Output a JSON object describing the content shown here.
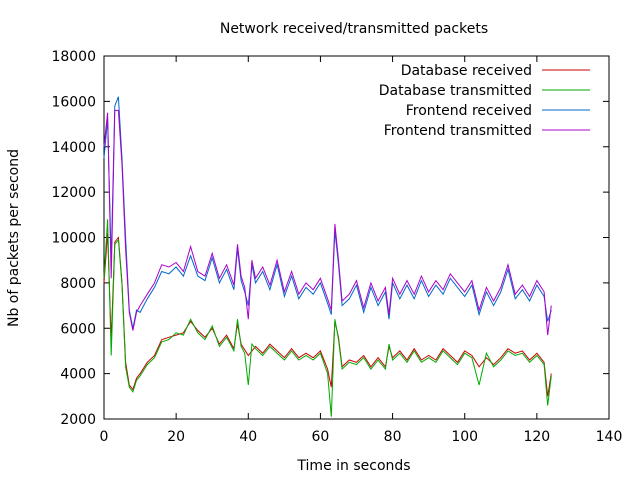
{
  "chart_data": {
    "type": "line",
    "title": "Network received/transmitted packets",
    "xlabel": "Time in seconds",
    "ylabel": "Nb of packets per second",
    "xlim": [
      0,
      140
    ],
    "ylim": [
      2000,
      18000
    ],
    "xticks": [
      0,
      20,
      40,
      60,
      80,
      100,
      120,
      140
    ],
    "yticks": [
      2000,
      4000,
      6000,
      8000,
      10000,
      12000,
      14000,
      16000,
      18000
    ],
    "grid": false,
    "legend_position": "top-right",
    "series": [
      {
        "name": "Database received",
        "color": "#cc0000",
        "points": [
          [
            0,
            8000
          ],
          [
            1,
            10200
          ],
          [
            2,
            5500
          ],
          [
            3,
            9800
          ],
          [
            4,
            10000
          ],
          [
            5,
            8000
          ],
          [
            6,
            4500
          ],
          [
            7,
            3500
          ],
          [
            8,
            3300
          ],
          [
            9,
            3800
          ],
          [
            10,
            4000
          ],
          [
            12,
            4500
          ],
          [
            14,
            4800
          ],
          [
            16,
            5500
          ],
          [
            18,
            5600
          ],
          [
            20,
            5700
          ],
          [
            22,
            5800
          ],
          [
            24,
            6300
          ],
          [
            26,
            5900
          ],
          [
            28,
            5600
          ],
          [
            30,
            6000
          ],
          [
            32,
            5300
          ],
          [
            34,
            5700
          ],
          [
            36,
            5100
          ],
          [
            37,
            6200
          ],
          [
            38,
            5300
          ],
          [
            40,
            4800
          ],
          [
            42,
            5200
          ],
          [
            44,
            4900
          ],
          [
            46,
            5300
          ],
          [
            48,
            5000
          ],
          [
            50,
            4700
          ],
          [
            52,
            5100
          ],
          [
            54,
            4700
          ],
          [
            56,
            4900
          ],
          [
            58,
            4700
          ],
          [
            60,
            5000
          ],
          [
            62,
            4200
          ],
          [
            63,
            3400
          ],
          [
            64,
            6300
          ],
          [
            65,
            5600
          ],
          [
            66,
            4300
          ],
          [
            68,
            4600
          ],
          [
            70,
            4500
          ],
          [
            72,
            4800
          ],
          [
            74,
            4300
          ],
          [
            76,
            4700
          ],
          [
            78,
            4300
          ],
          [
            79,
            5200
          ],
          [
            80,
            4700
          ],
          [
            82,
            5000
          ],
          [
            84,
            4600
          ],
          [
            86,
            5100
          ],
          [
            88,
            4600
          ],
          [
            90,
            4800
          ],
          [
            92,
            4600
          ],
          [
            94,
            5100
          ],
          [
            96,
            4800
          ],
          [
            98,
            4500
          ],
          [
            100,
            5000
          ],
          [
            102,
            4800
          ],
          [
            104,
            4300
          ],
          [
            106,
            4700
          ],
          [
            108,
            4400
          ],
          [
            110,
            4700
          ],
          [
            112,
            5100
          ],
          [
            114,
            4900
          ],
          [
            116,
            5000
          ],
          [
            118,
            4600
          ],
          [
            120,
            4900
          ],
          [
            122,
            4500
          ],
          [
            123,
            3000
          ],
          [
            124,
            4000
          ]
        ]
      },
      {
        "name": "Database transmitted",
        "color": "#00aa00",
        "points": [
          [
            0,
            8200
          ],
          [
            1,
            10800
          ],
          [
            2,
            4800
          ],
          [
            3,
            9700
          ],
          [
            4,
            9900
          ],
          [
            5,
            7900
          ],
          [
            6,
            4300
          ],
          [
            7,
            3400
          ],
          [
            8,
            3200
          ],
          [
            9,
            3700
          ],
          [
            10,
            3900
          ],
          [
            12,
            4400
          ],
          [
            14,
            4700
          ],
          [
            16,
            5400
          ],
          [
            18,
            5500
          ],
          [
            20,
            5800
          ],
          [
            22,
            5700
          ],
          [
            24,
            6400
          ],
          [
            26,
            5800
          ],
          [
            28,
            5500
          ],
          [
            30,
            6100
          ],
          [
            32,
            5200
          ],
          [
            34,
            5600
          ],
          [
            36,
            5000
          ],
          [
            37,
            6400
          ],
          [
            38,
            5200
          ],
          [
            39,
            4900
          ],
          [
            40,
            3500
          ],
          [
            41,
            5300
          ],
          [
            42,
            5100
          ],
          [
            44,
            4800
          ],
          [
            46,
            5200
          ],
          [
            48,
            4900
          ],
          [
            50,
            4600
          ],
          [
            52,
            5000
          ],
          [
            54,
            4600
          ],
          [
            56,
            4800
          ],
          [
            58,
            4600
          ],
          [
            60,
            4900
          ],
          [
            62,
            4000
          ],
          [
            63,
            2100
          ],
          [
            64,
            6400
          ],
          [
            65,
            5500
          ],
          [
            66,
            4200
          ],
          [
            68,
            4500
          ],
          [
            70,
            4400
          ],
          [
            72,
            4700
          ],
          [
            74,
            4200
          ],
          [
            76,
            4600
          ],
          [
            78,
            4200
          ],
          [
            79,
            5300
          ],
          [
            80,
            4600
          ],
          [
            82,
            4900
          ],
          [
            84,
            4500
          ],
          [
            86,
            5000
          ],
          [
            88,
            4500
          ],
          [
            90,
            4700
          ],
          [
            92,
            4500
          ],
          [
            94,
            5000
          ],
          [
            96,
            4700
          ],
          [
            98,
            4400
          ],
          [
            100,
            4900
          ],
          [
            102,
            4700
          ],
          [
            104,
            3500
          ],
          [
            106,
            4900
          ],
          [
            108,
            4300
          ],
          [
            110,
            4600
          ],
          [
            112,
            5000
          ],
          [
            114,
            4800
          ],
          [
            116,
            4900
          ],
          [
            118,
            4500
          ],
          [
            120,
            4800
          ],
          [
            122,
            4400
          ],
          [
            123,
            2600
          ],
          [
            124,
            3900
          ]
        ]
      },
      {
        "name": "Frontend received",
        "color": "#0066cc",
        "points": [
          [
            0,
            13500
          ],
          [
            1,
            15200
          ],
          [
            2,
            9000
          ],
          [
            3,
            15800
          ],
          [
            4,
            16200
          ],
          [
            5,
            13500
          ],
          [
            6,
            10000
          ],
          [
            7,
            6800
          ],
          [
            8,
            6000
          ],
          [
            9,
            6800
          ],
          [
            10,
            6700
          ],
          [
            12,
            7300
          ],
          [
            14,
            7800
          ],
          [
            16,
            8500
          ],
          [
            18,
            8400
          ],
          [
            20,
            8700
          ],
          [
            22,
            8300
          ],
          [
            24,
            9200
          ],
          [
            26,
            8300
          ],
          [
            28,
            8100
          ],
          [
            30,
            9100
          ],
          [
            32,
            8000
          ],
          [
            34,
            8600
          ],
          [
            36,
            7700
          ],
          [
            37,
            9500
          ],
          [
            38,
            8100
          ],
          [
            39,
            7600
          ],
          [
            40,
            7000
          ],
          [
            41,
            8800
          ],
          [
            42,
            8000
          ],
          [
            44,
            8500
          ],
          [
            46,
            7700
          ],
          [
            48,
            8800
          ],
          [
            50,
            7400
          ],
          [
            52,
            8300
          ],
          [
            54,
            7300
          ],
          [
            56,
            7800
          ],
          [
            58,
            7500
          ],
          [
            60,
            8000
          ],
          [
            62,
            7100
          ],
          [
            63,
            6600
          ],
          [
            64,
            10300
          ],
          [
            65,
            8800
          ],
          [
            66,
            7000
          ],
          [
            68,
            7300
          ],
          [
            70,
            7900
          ],
          [
            72,
            6700
          ],
          [
            74,
            7800
          ],
          [
            76,
            7000
          ],
          [
            78,
            7600
          ],
          [
            79,
            6400
          ],
          [
            80,
            8000
          ],
          [
            82,
            7300
          ],
          [
            84,
            7900
          ],
          [
            86,
            7300
          ],
          [
            88,
            8100
          ],
          [
            90,
            7400
          ],
          [
            92,
            7900
          ],
          [
            94,
            7500
          ],
          [
            96,
            8200
          ],
          [
            98,
            7800
          ],
          [
            100,
            7400
          ],
          [
            102,
            7900
          ],
          [
            104,
            6600
          ],
          [
            106,
            7600
          ],
          [
            108,
            7000
          ],
          [
            110,
            7600
          ],
          [
            112,
            8600
          ],
          [
            114,
            7300
          ],
          [
            116,
            7700
          ],
          [
            118,
            7200
          ],
          [
            120,
            7900
          ],
          [
            122,
            7400
          ],
          [
            123,
            6300
          ],
          [
            124,
            6800
          ]
        ]
      },
      {
        "name": "Frontend transmitted",
        "color": "#aa00cc",
        "points": [
          [
            0,
            14000
          ],
          [
            1,
            15500
          ],
          [
            2,
            8200
          ],
          [
            3,
            15600
          ],
          [
            4,
            15600
          ],
          [
            5,
            13200
          ],
          [
            6,
            9500
          ],
          [
            7,
            6700
          ],
          [
            8,
            5900
          ],
          [
            9,
            6700
          ],
          [
            10,
            7000
          ],
          [
            12,
            7500
          ],
          [
            14,
            8000
          ],
          [
            16,
            8800
          ],
          [
            18,
            8700
          ],
          [
            20,
            8900
          ],
          [
            22,
            8500
          ],
          [
            24,
            9600
          ],
          [
            26,
            8500
          ],
          [
            28,
            8300
          ],
          [
            30,
            9300
          ],
          [
            32,
            8200
          ],
          [
            34,
            8800
          ],
          [
            36,
            7900
          ],
          [
            37,
            9700
          ],
          [
            38,
            8300
          ],
          [
            39,
            7800
          ],
          [
            40,
            6400
          ],
          [
            41,
            9000
          ],
          [
            42,
            8200
          ],
          [
            44,
            8700
          ],
          [
            46,
            7900
          ],
          [
            48,
            9000
          ],
          [
            50,
            7600
          ],
          [
            52,
            8500
          ],
          [
            54,
            7500
          ],
          [
            56,
            8000
          ],
          [
            58,
            7700
          ],
          [
            60,
            8200
          ],
          [
            62,
            7300
          ],
          [
            63,
            6800
          ],
          [
            64,
            10600
          ],
          [
            65,
            9000
          ],
          [
            66,
            7200
          ],
          [
            68,
            7500
          ],
          [
            70,
            8100
          ],
          [
            72,
            6900
          ],
          [
            74,
            8000
          ],
          [
            76,
            7200
          ],
          [
            78,
            7800
          ],
          [
            79,
            6600
          ],
          [
            80,
            8200
          ],
          [
            82,
            7500
          ],
          [
            84,
            8100
          ],
          [
            86,
            7500
          ],
          [
            88,
            8300
          ],
          [
            90,
            7600
          ],
          [
            92,
            8100
          ],
          [
            94,
            7700
          ],
          [
            96,
            8400
          ],
          [
            98,
            8000
          ],
          [
            100,
            7600
          ],
          [
            102,
            8100
          ],
          [
            104,
            6800
          ],
          [
            106,
            7800
          ],
          [
            108,
            7200
          ],
          [
            110,
            7800
          ],
          [
            112,
            8800
          ],
          [
            114,
            7500
          ],
          [
            116,
            7900
          ],
          [
            118,
            7400
          ],
          [
            120,
            8100
          ],
          [
            122,
            7600
          ],
          [
            123,
            5700
          ],
          [
            124,
            7000
          ]
        ]
      }
    ]
  }
}
